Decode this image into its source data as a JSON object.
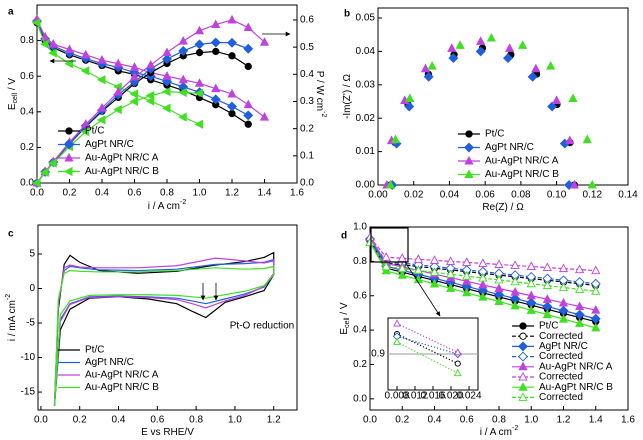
{
  "chart_data": [
    {
      "type": "line",
      "label": "a",
      "xlabel": [
        {
          "text": "i / A cm"
        },
        {
          "text": "-2",
          "sup": true
        }
      ],
      "ylabel": [
        {
          "text": "E"
        },
        {
          "text": "cell",
          "sub": true
        },
        {
          "text": " / V"
        }
      ],
      "y2label": [
        {
          "text": "P / W cm"
        },
        {
          "text": "-2",
          "sup": true
        }
      ],
      "x": [
        0,
        0.05,
        0.1,
        0.2,
        0.3,
        0.4,
        0.5,
        0.6,
        0.7,
        0.8,
        0.9,
        1.0,
        1.1,
        1.2,
        1.3,
        1.4
      ],
      "xlim": [
        0,
        1.6
      ],
      "xticks": [
        {
          "value": 0,
          "label": "0.0"
        },
        0.2,
        0.4,
        0.6,
        0.8,
        {
          "value": 1,
          "label": "1.0"
        },
        1.2,
        1.4,
        1.6
      ],
      "ylim": [
        0,
        1
      ],
      "yticks": [
        {
          "value": 0,
          "label": "0.0"
        },
        0.2,
        0.4,
        0.6,
        0.8
      ],
      "y2lim": [
        0,
        0.655
      ],
      "y2ticks": [
        {
          "value": 0,
          "label": "0.0"
        },
        0.1,
        0.2,
        0.3,
        0.4,
        0.5,
        0.6
      ],
      "series": [
        {
          "name": "Pt/C",
          "color": "#000000",
          "marker": "circle",
          "values": [
            0.9,
            0.8,
            0.76,
            0.72,
            0.69,
            0.66,
            0.63,
            0.61,
            0.58,
            0.55,
            0.52,
            0.48,
            0.44,
            0.39,
            0.33,
            null
          ]
        },
        {
          "name": "AgPt NR/C",
          "color": "#1f5fe0",
          "marker": "diamond",
          "values": [
            0.91,
            0.81,
            0.77,
            0.73,
            0.7,
            0.67,
            0.65,
            0.62,
            0.6,
            0.57,
            0.54,
            0.51,
            0.47,
            0.43,
            0.38,
            null
          ]
        },
        {
          "name": "Au-AgPt NR/C A",
          "color": "#c040e0",
          "marker": "triangle",
          "values": [
            0.92,
            0.82,
            0.78,
            0.75,
            0.72,
            0.69,
            0.67,
            0.65,
            0.62,
            0.6,
            0.58,
            0.56,
            0.53,
            0.5,
            0.44,
            0.37
          ]
        },
        {
          "name": "Au-AgPt NR/C B",
          "color": "#3ee020",
          "marker": "triangle-left",
          "values": [
            0.9,
            0.78,
            0.73,
            0.67,
            0.63,
            0.58,
            0.54,
            0.5,
            0.46,
            0.42,
            0.37,
            0.33,
            null,
            null,
            null,
            null
          ]
        },
        {
          "color": "#000000",
          "marker": "circle",
          "axis": "y2",
          "values": [
            0,
            0.04,
            0.076,
            0.144,
            0.207,
            0.264,
            0.315,
            0.366,
            0.406,
            0.44,
            0.468,
            0.48,
            0.484,
            0.468,
            0.429,
            null
          ]
        },
        {
          "color": "#1f5fe0",
          "marker": "diamond",
          "axis": "y2",
          "values": [
            0,
            0.041,
            0.077,
            0.146,
            0.21,
            0.268,
            0.325,
            0.372,
            0.42,
            0.456,
            0.486,
            0.51,
            0.517,
            0.516,
            0.494,
            null
          ]
        },
        {
          "color": "#c040e0",
          "marker": "triangle",
          "axis": "y2",
          "values": [
            0,
            0.041,
            0.078,
            0.15,
            0.216,
            0.276,
            0.335,
            0.39,
            0.434,
            0.48,
            0.522,
            0.56,
            0.583,
            0.6,
            0.572,
            0.518
          ]
        },
        {
          "color": "#3ee020",
          "marker": "triangle-left",
          "axis": "y2",
          "values": [
            0,
            0.039,
            0.073,
            0.134,
            0.189,
            0.232,
            0.27,
            0.3,
            0.322,
            0.336,
            0.333,
            0.33,
            null,
            null,
            null,
            null
          ]
        }
      ]
    },
    {
      "type": "scatter",
      "label": "b",
      "xlabel": [
        {
          "text": "Re(Z) / Ω"
        }
      ],
      "ylabel": [
        {
          "text": "-Im(Z') / Ω"
        }
      ],
      "xlim": [
        0,
        0.14
      ],
      "xticks": [
        {
          "value": 0,
          "label": "0.00"
        },
        0.02,
        0.04,
        0.06,
        0.08,
        {
          "value": 0.1,
          "label": "0.10"
        },
        0.12,
        0.14
      ],
      "ylim": [
        0,
        0.053
      ],
      "yticks": [
        {
          "value": 0,
          "label": "0.00"
        },
        0.01,
        0.02,
        0.03,
        0.04,
        0.05
      ],
      "series": [
        {
          "name": "Pt/C",
          "color": "#000000",
          "marker": "circle",
          "x": [
            0.007,
            0.0095,
            0.0168,
            0.0282,
            0.0426,
            0.0585,
            0.0744,
            0.0888,
            0.1002,
            0.1075,
            0.11
          ],
          "values": [
            0,
            0.0127,
            0.0241,
            0.0332,
            0.039,
            0.041,
            0.039,
            0.0332,
            0.0241,
            0.0127,
            0
          ]
        },
        {
          "name": "AgPt NR/C",
          "color": "#1f5fe0",
          "marker": "diamond",
          "x": [
            0.008,
            0.0104,
            0.0175,
            0.0284,
            0.0422,
            0.0575,
            0.0728,
            0.0866,
            0.0975,
            0.1046,
            0.107
          ],
          "values": [
            0,
            0.0124,
            0.0235,
            0.0324,
            0.038,
            0.04,
            0.038,
            0.0324,
            0.0235,
            0.0124,
            0
          ]
        },
        {
          "name": "Au-AgPt NR/C A",
          "color": "#c040e0",
          "marker": "triangle",
          "x": [
            0.005,
            0.0076,
            0.015,
            0.0266,
            0.0413,
            0.0575,
            0.0737,
            0.0884,
            0.1,
            0.1074,
            0.11
          ],
          "values": [
            0,
            0.0133,
            0.0253,
            0.0348,
            0.0409,
            0.043,
            0.0409,
            0.0348,
            0.0253,
            0.0133,
            0
          ]
        },
        {
          "name": "Au-AgPt NR/C B",
          "color": "#3ee020",
          "marker": "triangle",
          "x": [
            0.007,
            0.0098,
            0.0178,
            0.0303,
            0.046,
            0.0635,
            0.081,
            0.0967,
            0.1092,
            0.1172,
            0.12
          ],
          "values": [
            0,
            0.0136,
            0.0259,
            0.0356,
            0.0418,
            0.044,
            0.0418,
            0.0356,
            0.0259,
            0.0136,
            0
          ]
        }
      ]
    },
    {
      "type": "line",
      "label": "c",
      "annotation": "Pt-O reduction",
      "xlabel": [
        {
          "text": "E vs RHE/V"
        }
      ],
      "ylabel": [
        {
          "text": "i / mA cm"
        },
        {
          "text": "-2",
          "sup": true
        }
      ],
      "x": [
        0.07,
        0.09,
        0.12,
        0.15,
        0.2,
        0.3,
        0.5,
        0.7,
        0.9,
        1.05,
        1.15,
        1.2,
        1.2,
        1.15,
        1.05,
        0.95,
        0.85,
        0.78,
        0.7,
        0.55,
        0.4,
        0.25,
        0.15,
        0.1,
        0.07
      ],
      "xlim": [
        -0.015,
        1.32
      ],
      "xticks": [
        {
          "value": 0,
          "label": "0.0"
        },
        0.2,
        0.4,
        0.6,
        0.8,
        {
          "value": 1,
          "label": "1.0"
        },
        1.2
      ],
      "ylim": [
        -17.6,
        9.2
      ],
      "yticks": [
        -15,
        -10,
        -5,
        0,
        5
      ],
      "series": [
        {
          "name": "Pt/C",
          "color": "#000000",
          "values": [
            -17,
            -3,
            3.5,
            4.8,
            3.8,
            2.6,
            2.2,
            2.5,
            3.4,
            3.9,
            4.5,
            5.2,
            2,
            -0.3,
            -1.2,
            -2,
            -4.2,
            -3.3,
            -2.2,
            -1.5,
            -1.2,
            -1.4,
            -3,
            -6,
            -17
          ]
        },
        {
          "name": "AgPt NR/C",
          "color": "#1f5fe0",
          "values": [
            -17,
            -2,
            2.6,
            3.2,
            3,
            2.7,
            2.6,
            2.8,
            3.5,
            3.6,
            3.8,
            4.2,
            2,
            0.2,
            -0.8,
            -1.5,
            -2.2,
            -1.8,
            -1.4,
            -1.2,
            -1.1,
            -1.2,
            -2.2,
            -4.5,
            -17
          ]
        },
        {
          "name": "Au-AgPt NR/C A",
          "color": "#c040e0",
          "values": [
            -17,
            -2.2,
            3,
            3.4,
            3.1,
            3,
            3,
            3.3,
            4.4,
            4,
            3.7,
            4,
            2.2,
            0.3,
            -1,
            -1.8,
            -2.8,
            -2.2,
            -1.6,
            -1.3,
            -1.2,
            -1.3,
            -2.3,
            -4.8,
            -17
          ]
        },
        {
          "name": "Au-AgPt NR/C B",
          "color": "#3ee020",
          "values": [
            -17,
            -1.5,
            2.2,
            2.6,
            2.5,
            2.4,
            2.4,
            2.6,
            3,
            2.8,
            2.9,
            3.2,
            2,
            0.4,
            -0.4,
            -0.9,
            -1.4,
            -1.2,
            -1,
            -0.9,
            -0.9,
            -1,
            -1.8,
            -3.8,
            -17
          ]
        }
      ]
    },
    {
      "type": "line",
      "label": "d",
      "xlabel": [
        {
          "text": "i / A cm"
        },
        {
          "text": "-2",
          "sup": true
        }
      ],
      "ylabel": [
        {
          "text": "E"
        },
        {
          "text": "cell",
          "sub": true
        },
        {
          "text": " / V"
        }
      ],
      "x": [
        0,
        0.1,
        0.2,
        0.3,
        0.4,
        0.5,
        0.6,
        0.7,
        0.8,
        0.9,
        1.0,
        1.1,
        1.2,
        1.3,
        1.4
      ],
      "xlim": [
        0,
        1.6
      ],
      "xticks": [
        {
          "value": 0,
          "label": "0.0"
        },
        0.2,
        0.4,
        0.6,
        0.8,
        {
          "value": 1,
          "label": "1.0"
        },
        1.2,
        1.4,
        1.6
      ],
      "ylim": [
        -0.065,
        1
      ],
      "yticks": [
        {
          "value": 0,
          "label": "0.0"
        },
        0.2,
        0.4,
        0.6,
        0.8,
        {
          "value": 1,
          "label": "1.0"
        }
      ],
      "series": [
        {
          "name": "Pt/C",
          "color": "#000000",
          "marker": "circle",
          "values": [
            0.92,
            0.761,
            0.737,
            0.713,
            0.689,
            0.665,
            0.641,
            0.617,
            0.593,
            0.569,
            0.545,
            0.521,
            0.497,
            0.473,
            0.449
          ]
        },
        {
          "name": "Corrected",
          "color": "#000000",
          "marker": "circle",
          "filled": false,
          "linestyle": "dashed",
          "values": [
            0.92,
            0.79,
            0.78,
            0.77,
            0.76,
            0.75,
            0.74,
            0.73,
            0.72,
            0.71,
            0.7,
            0.69,
            0.68,
            0.67,
            0.66
          ]
        },
        {
          "name": "AgPt NR/C",
          "color": "#1f5fe0",
          "marker": "diamond",
          "values": [
            0.93,
            0.772,
            0.748,
            0.725,
            0.701,
            0.678,
            0.654,
            0.631,
            0.607,
            0.584,
            0.56,
            0.537,
            0.513,
            0.49,
            0.466
          ]
        },
        {
          "name": "Corrected",
          "color": "#1f5fe0",
          "marker": "diamond",
          "filled": false,
          "linestyle": "dashed",
          "values": [
            0.93,
            0.8,
            0.79,
            0.78,
            0.77,
            0.76,
            0.75,
            0.74,
            0.73,
            0.72,
            0.71,
            0.7,
            0.69,
            0.68,
            0.67
          ]
        },
        {
          "name": "Au-AgPt NR/C A",
          "color": "#c040e0",
          "marker": "triangle",
          "values": [
            0.94,
            0.789,
            0.768,
            0.747,
            0.726,
            0.705,
            0.684,
            0.663,
            0.642,
            0.621,
            0.6,
            0.579,
            0.558,
            0.537,
            0.516
          ]
        },
        {
          "name": "Corrected",
          "color": "#c040e0",
          "marker": "triangle",
          "filled": false,
          "linestyle": "dashed",
          "values": [
            0.94,
            0.824,
            0.818,
            0.812,
            0.806,
            0.8,
            0.794,
            0.788,
            0.782,
            0.776,
            0.77,
            0.764,
            0.758,
            0.752,
            0.746
          ]
        },
        {
          "name": "Au-AgPt NR/C B",
          "color": "#3ee020",
          "marker": "triangle",
          "values": [
            0.91,
            0.745,
            0.719,
            0.694,
            0.668,
            0.643,
            0.617,
            0.592,
            0.566,
            0.541,
            0.515,
            0.49,
            0.464,
            0.439,
            0.413
          ]
        },
        {
          "name": "Corrected",
          "color": "#3ee020",
          "marker": "triangle",
          "filled": false,
          "linestyle": "dashed",
          "values": [
            0.91,
            0.769,
            0.758,
            0.747,
            0.736,
            0.725,
            0.714,
            0.703,
            0.692,
            0.681,
            0.67,
            0.659,
            0.648,
            0.637,
            0.626
          ]
        }
      ]
    },
    {
      "type": "line",
      "grid": true,
      "x": [
        0.008,
        0.0215
      ],
      "xlim": [
        0.006,
        0.026
      ],
      "xticks": [
        0.008,
        0.012,
        0.016,
        {
          "value": 0.02,
          "label": "0.020"
        },
        0.024
      ],
      "ylim": [
        0.855,
        0.945
      ],
      "yticks": [
        0.9
      ],
      "series": [
        {
          "color": "#000000",
          "marker": "circle",
          "filled": false,
          "linestyle": "dotted",
          "values": [
            0.925,
            0.888
          ]
        },
        {
          "color": "#1f5fe0",
          "marker": "diamond",
          "filled": false,
          "linestyle": "dotted",
          "values": [
            0.922,
            0.9
          ]
        },
        {
          "color": "#c040e0",
          "marker": "triangle",
          "filled": false,
          "linestyle": "dotted",
          "values": [
            0.938,
            0.902
          ]
        },
        {
          "color": "#3ee020",
          "marker": "triangle",
          "filled": false,
          "linestyle": "dotted",
          "values": [
            0.915,
            0.876
          ]
        }
      ]
    }
  ]
}
